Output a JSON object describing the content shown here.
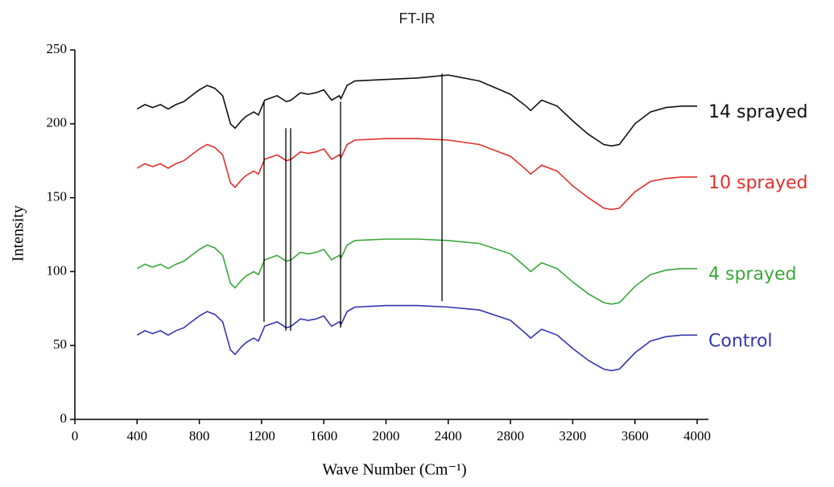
{
  "chart_data": {
    "type": "line",
    "title": "FT-IR",
    "xlabel": "Wave Number (Cm⁻¹)",
    "ylabel": "Intensity",
    "x": [
      400,
      450,
      500,
      550,
      600,
      650,
      700,
      750,
      800,
      850,
      900,
      950,
      1000,
      1030,
      1070,
      1100,
      1150,
      1180,
      1220,
      1300,
      1360,
      1390,
      1450,
      1500,
      1550,
      1600,
      1650,
      1700,
      1710,
      1750,
      1800,
      2000,
      2200,
      2400,
      2600,
      2800,
      2900,
      2930,
      3000,
      3100,
      3200,
      3300,
      3400,
      3450,
      3500,
      3600,
      3700,
      3800,
      3900,
      4000
    ],
    "series": [
      {
        "name": "14 sprayed",
        "color": "#111111",
        "values": [
          210,
          213,
          211,
          213,
          210,
          213,
          215,
          219,
          223,
          226,
          224,
          219,
          200,
          197,
          202,
          205,
          208,
          206,
          216,
          219,
          215,
          216,
          221,
          220,
          221,
          223,
          216,
          219,
          217,
          226,
          229,
          230,
          231,
          233,
          229,
          220,
          212,
          209,
          216,
          212,
          202,
          193,
          186,
          185,
          186,
          200,
          208,
          211,
          212,
          212
        ]
      },
      {
        "name": "10 sprayed",
        "color": "#e0302c",
        "values": [
          170,
          173,
          171,
          173,
          170,
          173,
          175,
          179,
          183,
          186,
          184,
          179,
          160,
          157,
          162,
          165,
          168,
          166,
          176,
          179,
          175,
          176,
          181,
          180,
          181,
          183,
          176,
          179,
          177,
          186,
          189,
          190,
          190,
          189,
          186,
          178,
          169,
          166,
          172,
          168,
          158,
          150,
          143,
          142,
          143,
          154,
          161,
          163,
          164,
          164
        ]
      },
      {
        "name": "4 sprayed",
        "color": "#3aa63a",
        "values": [
          102,
          105,
          103,
          105,
          102,
          105,
          107,
          111,
          115,
          118,
          116,
          111,
          92,
          89,
          94,
          97,
          100,
          98,
          108,
          111,
          107,
          108,
          113,
          112,
          113,
          115,
          108,
          111,
          109,
          118,
          121,
          122,
          122,
          121,
          119,
          112,
          103,
          100,
          106,
          102,
          93,
          85,
          79,
          78,
          79,
          90,
          98,
          101,
          102,
          102
        ]
      },
      {
        "name": "Control",
        "color": "#3535b0",
        "values": [
          57,
          60,
          58,
          60,
          57,
          60,
          62,
          66,
          70,
          73,
          71,
          66,
          47,
          44,
          49,
          52,
          55,
          53,
          63,
          66,
          62,
          63,
          68,
          67,
          68,
          70,
          63,
          66,
          64,
          73,
          76,
          77,
          77,
          76,
          74,
          67,
          58,
          55,
          61,
          57,
          48,
          40,
          34,
          33,
          34,
          45,
          53,
          56,
          57,
          57
        ]
      }
    ],
    "reference_lines": [
      {
        "x": 1216,
        "y": [
          66,
          215
        ]
      },
      {
        "x": 1356,
        "y": [
          60,
          197
        ]
      },
      {
        "x": 1387,
        "y": [
          60,
          197
        ]
      },
      {
        "x": 1708,
        "y": [
          62,
          215
        ]
      },
      {
        "x": 2360,
        "y": [
          80,
          234
        ]
      }
    ],
    "xlim": [
      0,
      4000
    ],
    "xticks": [
      0,
      400,
      800,
      1200,
      1600,
      2000,
      2400,
      2800,
      3200,
      3600,
      4000
    ],
    "ylim": [
      0,
      250
    ],
    "yticks": [
      0,
      50,
      100,
      150,
      200,
      250
    ]
  }
}
